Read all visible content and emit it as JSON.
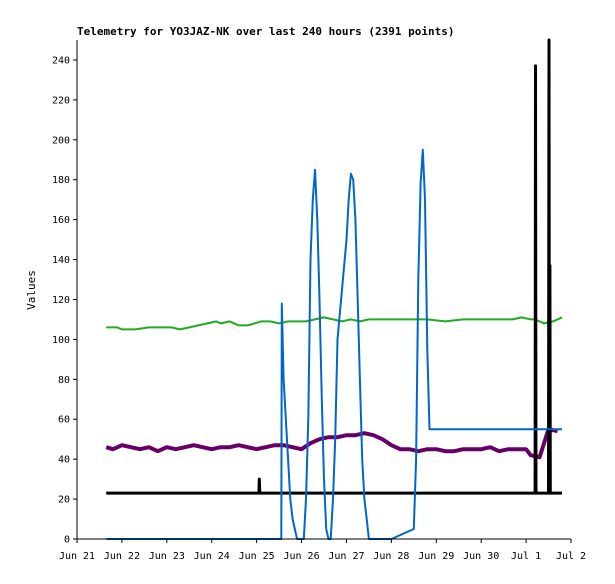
{
  "chart_data": {
    "type": "line",
    "title": "Telemetry for YO3JAZ-NK over last 240 hours (2391 points)",
    "ylabel": "Values",
    "xlabel": "",
    "ylim": [
      0,
      250
    ],
    "xlim": [
      0,
      11
    ],
    "y_ticks": [
      0,
      20,
      40,
      60,
      80,
      100,
      120,
      140,
      160,
      180,
      200,
      220,
      240
    ],
    "x_ticks": [
      {
        "x": 0,
        "label": "Jun 21"
      },
      {
        "x": 1,
        "label": "Jun 22"
      },
      {
        "x": 2,
        "label": "Jun 23"
      },
      {
        "x": 3,
        "label": "Jun 24"
      },
      {
        "x": 4,
        "label": "Jun 25"
      },
      {
        "x": 5,
        "label": "Jun 26"
      },
      {
        "x": 6,
        "label": "Jun 27"
      },
      {
        "x": 7,
        "label": "Jun 28"
      },
      {
        "x": 8,
        "label": "Jun 29"
      },
      {
        "x": 9,
        "label": "Jun 30"
      },
      {
        "x": 10,
        "label": "Jul 1"
      },
      {
        "x": 11,
        "label": "Jul 2"
      }
    ],
    "grid": false,
    "legend": "none",
    "series": [
      {
        "color": "#22aa22",
        "x": [
          0.65,
          0.9,
          1.0,
          1.3,
          1.6,
          1.9,
          2.1,
          2.3,
          2.5,
          2.7,
          2.9,
          3.1,
          3.2,
          3.4,
          3.6,
          3.8,
          3.95,
          4.1,
          4.3,
          4.5,
          4.7,
          4.9,
          5.0,
          5.1,
          5.3,
          5.5,
          5.7,
          5.9,
          6.1,
          6.3,
          6.5,
          6.7,
          6.9,
          7.1,
          7.4,
          7.8,
          8.2,
          8.6,
          9.0,
          9.4,
          9.7,
          9.9,
          10.1,
          10.2,
          10.4,
          10.6,
          10.8
        ],
        "values": [
          106,
          106,
          105,
          105,
          106,
          106,
          106,
          105,
          106,
          107,
          108,
          109,
          108,
          109,
          107,
          107,
          108,
          109,
          109,
          108,
          109,
          109,
          109,
          109,
          110,
          111,
          110,
          109,
          110,
          109,
          110,
          110,
          110,
          110,
          110,
          110,
          109,
          110,
          110,
          110,
          110,
          111,
          110,
          110,
          108,
          109,
          111
        ]
      },
      {
        "color": "#660066",
        "x": [
          0.65,
          0.8,
          1.0,
          1.2,
          1.4,
          1.6,
          1.8,
          2.0,
          2.2,
          2.4,
          2.6,
          2.8,
          3.0,
          3.2,
          3.4,
          3.6,
          3.8,
          4.0,
          4.2,
          4.4,
          4.6,
          4.8,
          5.0,
          5.2,
          5.4,
          5.6,
          5.8,
          6.0,
          6.2,
          6.4,
          6.6,
          6.8,
          7.0,
          7.2,
          7.4,
          7.6,
          7.8,
          8.0,
          8.2,
          8.4,
          8.6,
          8.8,
          9.0,
          9.2,
          9.4,
          9.6,
          9.8,
          10.0,
          10.1,
          10.3,
          10.5,
          10.7
        ],
        "values": [
          46,
          45,
          47,
          46,
          45,
          46,
          44,
          46,
          45,
          46,
          47,
          46,
          45,
          46,
          46,
          47,
          46,
          45,
          46,
          47,
          47,
          46,
          45,
          48,
          50,
          51,
          51,
          52,
          52,
          53,
          52,
          50,
          47,
          45,
          45,
          44,
          45,
          45,
          44,
          44,
          45,
          45,
          45,
          46,
          44,
          45,
          45,
          45,
          42,
          41,
          55,
          54
        ]
      },
      {
        "color": "#000000",
        "x": [
          0.65,
          4.05,
          4.06,
          4.07,
          10.2,
          10.21,
          10.22,
          10.23,
          10.24,
          10.25,
          10.5,
          10.51,
          10.52,
          10.53,
          10.54,
          10.55,
          10.8
        ],
        "values": [
          23,
          23,
          30,
          23,
          23,
          237,
          23,
          23,
          23,
          23,
          23,
          250,
          23,
          137,
          23,
          23,
          23
        ]
      },
      {
        "color": "#0066cc",
        "x": [
          0.65,
          4.55,
          4.56,
          4.6,
          4.75,
          4.8,
          4.85,
          4.9,
          5.0,
          5.05,
          5.1,
          5.15,
          5.2,
          5.25,
          5.3,
          5.35,
          5.4,
          5.45,
          5.5,
          5.55,
          5.6,
          5.65,
          5.7,
          5.75,
          5.8,
          6.0,
          6.05,
          6.1,
          6.15,
          6.2,
          6.25,
          6.3,
          6.35,
          6.4,
          6.45,
          6.5,
          6.55,
          6.6,
          6.65,
          6.7,
          6.75,
          6.8,
          6.9,
          7.0,
          7.5,
          7.55,
          7.6,
          7.65,
          7.7,
          7.75,
          7.8,
          7.85,
          7.9,
          8.0,
          8.3,
          8.5,
          9.0,
          9.5,
          10.0,
          10.5,
          10.55,
          10.6,
          10.65,
          10.7,
          10.75,
          10.8
        ],
        "values": [
          0,
          0,
          118,
          80,
          20,
          10,
          5,
          0,
          0,
          0,
          20,
          60,
          140,
          170,
          185,
          160,
          120,
          70,
          30,
          5,
          0,
          0,
          20,
          50,
          100,
          150,
          170,
          183,
          180,
          160,
          120,
          80,
          40,
          20,
          10,
          0,
          0,
          0,
          0,
          0,
          0,
          0,
          0,
          0,
          5,
          40,
          130,
          178,
          195,
          170,
          95,
          55,
          55,
          55,
          55,
          55,
          55,
          55,
          55,
          55,
          55,
          55,
          55,
          55,
          55,
          55
        ]
      }
    ]
  }
}
